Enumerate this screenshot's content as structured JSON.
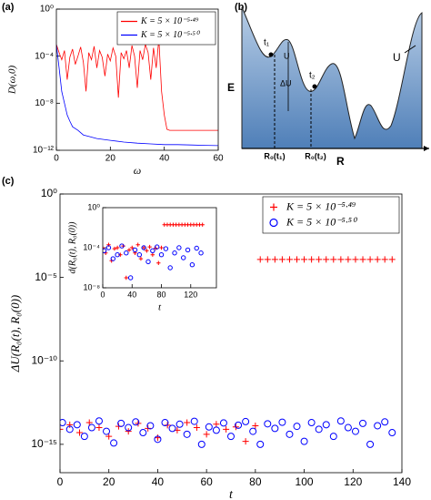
{
  "chart_data": [
    {
      "type": "line",
      "panel_label": "(a)",
      "y_label": "D(ω,0)",
      "x_label": "ω",
      "y_scale": "log",
      "legend": "upper right",
      "xlim": [
        0,
        60
      ],
      "xticks": [
        0,
        20,
        40,
        60
      ],
      "ylim": [
        1e-12,
        1
      ],
      "yticks": [
        {
          "value": 1,
          "label": "10⁰"
        },
        {
          "value": 0.0001,
          "label": "10⁻⁴"
        },
        {
          "value": 1e-08,
          "label": "10⁻⁸"
        },
        {
          "value": 1e-12,
          "label": "10⁻¹²"
        }
      ],
      "series": [
        {
          "name": "K = 5 × 10⁻⁵·⁴⁹",
          "color": "#ff0000",
          "x": [
            0,
            1,
            2,
            3,
            4,
            5,
            6,
            7,
            8,
            9,
            10,
            11,
            12,
            13,
            14,
            15,
            16,
            17,
            18,
            19,
            20,
            21,
            22,
            23,
            24,
            25,
            26,
            27,
            28,
            29,
            30,
            31,
            32,
            33,
            34,
            35,
            36,
            37,
            38,
            39,
            40,
            41,
            42,
            43,
            44,
            45,
            46,
            47,
            48,
            49,
            50,
            51,
            52,
            53,
            54,
            55,
            56,
            57,
            58,
            59,
            60
          ],
          "values": [
            0.001,
            0.0002,
            5e-05,
            0.0003,
            1e-06,
            8e-05,
            0.0004,
            2e-05,
            0.0001,
            0.0006,
            3e-05,
            1e-07,
            0.0002,
            5e-05,
            0.0007,
            1e-05,
            0.0003,
            8e-05,
            2e-06,
            0.00015,
            4e-05,
            0.0005,
            0.0001,
            3e-08,
            0.0002,
            6e-05,
            0.0003,
            1e-05,
            0.0008,
            0.0001,
            2e-07,
            0.0003,
            5e-05,
            0.001,
            0.0002,
            1e-06,
            0.0005,
            1e-05,
            0.003,
            1e-07,
            1e-09,
            6e-11,
            5e-11,
            5e-11,
            5e-11,
            5e-11,
            5e-11,
            5e-11,
            5e-11,
            5e-11,
            5e-11,
            5e-11,
            5e-11,
            5e-11,
            5e-11,
            5e-11,
            5e-11,
            5e-11,
            5e-11,
            5e-11,
            5e-11
          ]
        },
        {
          "name": "K = 5 × 10⁻⁵·⁵⁰",
          "color": "#0000ff",
          "x": [
            0,
            1,
            2,
            3,
            4,
            5,
            6,
            8,
            10,
            12,
            15,
            20,
            25,
            30,
            35,
            40,
            45,
            50,
            55,
            60
          ],
          "values": [
            0.001,
            1e-05,
            1e-07,
            1e-08,
            1e-09,
            3e-10,
            1e-10,
            5e-11,
            2e-11,
            1.5e-11,
            1e-11,
            7e-12,
            5e-12,
            4e-12,
            3.5e-12,
            3e-12,
            3e-12,
            2.8e-12,
            2.6e-12,
            2.5e-12
          ]
        }
      ]
    },
    {
      "type": "scatter",
      "panel_label": "(c)",
      "y_label": "ΔU(R₀(t), R₀(0))",
      "x_label": "t",
      "y_scale": "log",
      "legend": "upper right",
      "xlim": [
        0,
        140
      ],
      "xticks": [
        0,
        20,
        40,
        60,
        80,
        100,
        120,
        140
      ],
      "ylim": [
        2e-17,
        1
      ],
      "yticks": [
        {
          "value": 1,
          "label": "10⁰"
        },
        {
          "value": 1e-05,
          "label": "10⁻⁵"
        },
        {
          "value": 1e-10,
          "label": "10⁻¹⁰"
        },
        {
          "value": 1e-15,
          "label": "10⁻¹⁵"
        }
      ],
      "series": [
        {
          "name": "K = 5 × 10⁻⁵·⁴⁹",
          "color": "#ff0000",
          "marker": "plus",
          "x": [
            0,
            4,
            8,
            12,
            16,
            20,
            24,
            28,
            32,
            36,
            40,
            44,
            48,
            52,
            56,
            60,
            64,
            68,
            72,
            76,
            80,
            82,
            85,
            88,
            91,
            94,
            97,
            100,
            103,
            106,
            109,
            112,
            115,
            118,
            121,
            124,
            127,
            130,
            133,
            136
          ],
          "values": [
            8e-15,
            1.5e-14,
            5e-15,
            2e-14,
            1e-14,
            3e-15,
            1.2e-14,
            6e-15,
            1.8e-14,
            9e-15,
            2.5e-15,
            1.4e-14,
            7e-15,
            2e-14,
            1e-14,
            4e-15,
            1.6e-14,
            8e-15,
            1.1e-14,
            1.5e-15,
            1.3e-14,
            0.00012,
            0.00012,
            0.00012,
            0.00012,
            0.00012,
            0.00012,
            0.00012,
            0.00012,
            0.00012,
            0.00012,
            0.00012,
            0.00012,
            0.00012,
            0.00012,
            0.00012,
            0.00012,
            0.00012,
            0.00012,
            0.00012
          ]
        },
        {
          "name": "K = 5 × 10⁻⁵·⁵⁰",
          "color": "#0000ff",
          "marker": "circle",
          "x": [
            1,
            4,
            7,
            10,
            13,
            16,
            19,
            22,
            25,
            28,
            31,
            34,
            37,
            40,
            43,
            46,
            49,
            52,
            55,
            58,
            61,
            64,
            67,
            70,
            73,
            76,
            79,
            82,
            85,
            88,
            91,
            94,
            97,
            100,
            103,
            106,
            109,
            112,
            115,
            118,
            121,
            124,
            127,
            130,
            133,
            136
          ],
          "values": [
            2e-14,
            8e-15,
            1.5e-14,
            3e-15,
            1e-14,
            2.5e-14,
            6e-15,
            1.2e-15,
            1.8e-14,
            1e-14,
            2.2e-14,
            5e-15,
            1.3e-14,
            2e-15,
            2e-14,
            9e-15,
            1.6e-14,
            4e-15,
            2.4e-14,
            1e-15,
            1.1e-14,
            7e-15,
            1.9e-14,
            3e-15,
            1.4e-14,
            2.3e-14,
            6e-15,
            1e-15,
            1.7e-14,
            9e-15,
            2.1e-14,
            4e-15,
            1.2e-14,
            1.5e-15,
            2e-14,
            8e-15,
            1.5e-14,
            3e-15,
            2.5e-14,
            1e-14,
            6e-15,
            1.8e-14,
            1e-15,
            1.3e-14,
            2.2e-14,
            5e-15
          ]
        }
      ]
    },
    {
      "type": "scatter",
      "y_label": "d(R₀(t), R₀(0))",
      "x_label": "t",
      "y_scale": "log",
      "xlim": [
        0,
        155
      ],
      "xticks": [
        0,
        40,
        80,
        120
      ],
      "ylim": [
        1e-08,
        1
      ],
      "yticks": [
        {
          "value": 1,
          "label": "10⁰"
        },
        {
          "value": 0.0001,
          "label": "10⁻⁴"
        },
        {
          "value": 1e-08,
          "label": "10⁻⁸"
        }
      ],
      "series": [
        {
          "color": "#ff0000",
          "marker": "plus",
          "x": [
            0,
            4,
            8,
            12,
            16,
            20,
            24,
            28,
            32,
            36,
            40,
            44,
            48,
            52,
            56,
            60,
            64,
            68,
            72,
            76,
            80,
            84,
            88,
            92,
            96,
            100,
            104,
            108,
            112,
            116,
            120,
            124,
            128,
            132,
            136
          ],
          "values": [
            0.0001,
            3e-05,
            0.0002,
            5e-06,
            8e-05,
            0.0001,
            2e-05,
            0.00015,
            1e-07,
            6e-05,
            0.0001,
            3e-05,
            0.0002,
            8e-06,
            0.0001,
            5e-05,
            0.00012,
            2e-05,
            9e-05,
            3e-06,
            0.0001,
            0.02,
            0.02,
            0.02,
            0.02,
            0.02,
            0.02,
            0.02,
            0.02,
            0.02,
            0.02,
            0.02,
            0.02,
            0.02,
            0.02
          ]
        },
        {
          "color": "#0000ff",
          "marker": "circle",
          "x": [
            2,
            8,
            14,
            20,
            26,
            32,
            38,
            44,
            50,
            56,
            62,
            68,
            74,
            80,
            86,
            92,
            98,
            104,
            110,
            116,
            122,
            128,
            134
          ],
          "values": [
            5e-05,
            0.0001,
            8e-06,
            2e-05,
            0.00015,
            3e-05,
            1e-07,
            6e-05,
            2e-05,
            0.0001,
            4e-06,
            5e-05,
            0.00012,
            2e-05,
            8e-05,
            1e-06,
            3e-05,
            0.0001,
            1e-05,
            6e-05,
            2e-06,
            9e-05,
            3e-05
          ]
        }
      ]
    }
  ],
  "diagram": {
    "panel_label": "(b)",
    "y_axis": "E",
    "x_axis": "R",
    "curve_label": "U",
    "time_1": "t₁",
    "time_2": "t₂",
    "barrier": "U",
    "delta": "ΔU",
    "position_1": "R₀(t₁)",
    "position_2": "R₀(t₂)"
  }
}
